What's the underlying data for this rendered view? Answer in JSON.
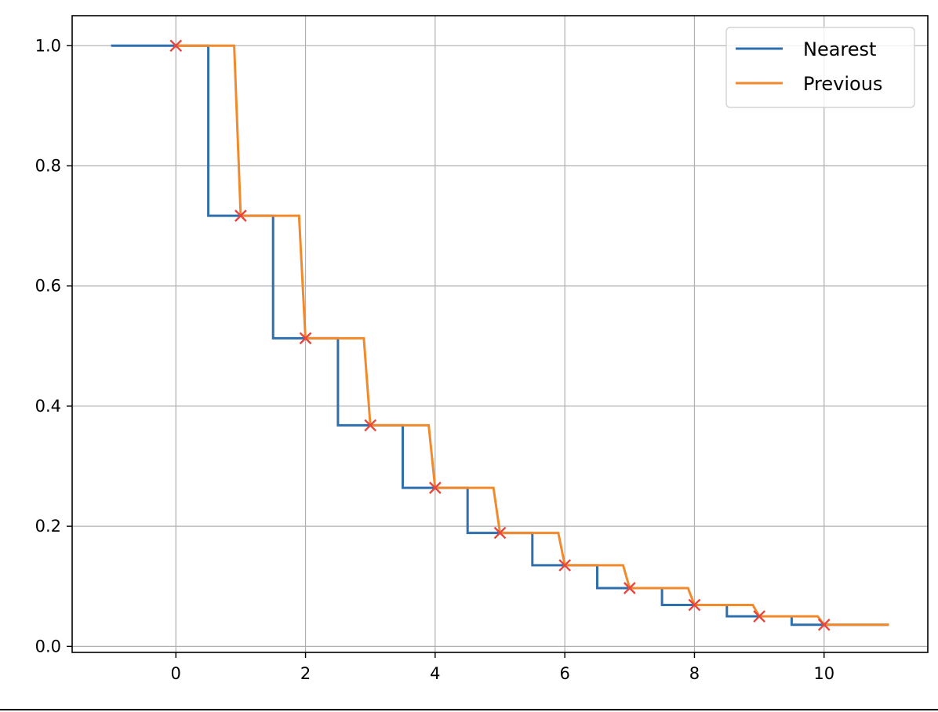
{
  "chart_data": {
    "type": "line",
    "title": "",
    "xlabel": "",
    "ylabel": "",
    "xlim": [
      -1.6,
      11.6
    ],
    "ylim": [
      -0.01,
      1.05
    ],
    "x_ticks": [
      0,
      2,
      4,
      6,
      8,
      10
    ],
    "x_tick_labels": [
      "0",
      "2",
      "4",
      "6",
      "8",
      "10"
    ],
    "y_ticks": [
      0.0,
      0.2,
      0.4,
      0.6,
      0.8,
      1.0
    ],
    "y_tick_labels": [
      "0.0",
      "0.2",
      "0.4",
      "0.6",
      "0.8",
      "1.0"
    ],
    "grid": true,
    "legend_position": "top-right",
    "sample_points": {
      "marker": "x",
      "color": "#e8453c",
      "x": [
        0,
        1,
        2,
        3,
        4,
        5,
        6,
        7,
        8,
        9,
        10
      ],
      "y": [
        1.0,
        0.717,
        0.513,
        0.368,
        0.264,
        0.189,
        0.135,
        0.097,
        0.069,
        0.05,
        0.036
      ]
    },
    "series": [
      {
        "name": "Nearest",
        "color": "#2f6fad",
        "x": [
          -1.0,
          0.5,
          0.5,
          1.5,
          1.5,
          2.5,
          2.5,
          3.5,
          3.5,
          4.5,
          4.5,
          5.5,
          5.5,
          6.5,
          6.5,
          7.5,
          7.5,
          8.5,
          8.5,
          9.5,
          9.5,
          11.0
        ],
        "y": [
          1.0,
          1.0,
          0.717,
          0.717,
          0.513,
          0.513,
          0.368,
          0.368,
          0.264,
          0.264,
          0.189,
          0.189,
          0.135,
          0.135,
          0.097,
          0.097,
          0.069,
          0.069,
          0.05,
          0.05,
          0.036,
          0.036
        ]
      },
      {
        "name": "Previous",
        "color": "#f28a2c",
        "x": [
          0,
          0.9,
          1.0,
          1.9,
          2.0,
          2.9,
          3.0,
          3.9,
          4.0,
          4.9,
          5.0,
          5.9,
          6.0,
          6.9,
          7.0,
          7.9,
          8.0,
          8.9,
          9.0,
          9.9,
          10.0,
          11.0
        ],
        "y": [
          1.0,
          1.0,
          0.717,
          0.717,
          0.513,
          0.513,
          0.368,
          0.368,
          0.264,
          0.264,
          0.189,
          0.189,
          0.135,
          0.135,
          0.097,
          0.097,
          0.069,
          0.069,
          0.05,
          0.05,
          0.036,
          0.036
        ]
      }
    ]
  }
}
